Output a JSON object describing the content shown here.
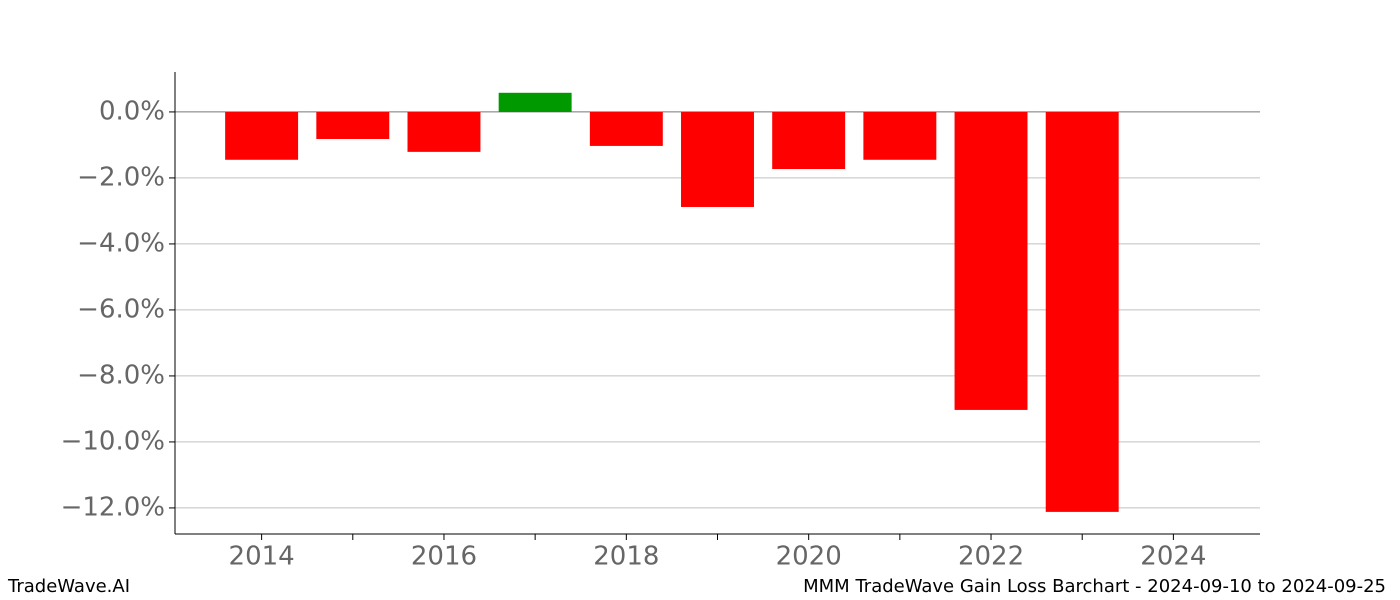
{
  "chart_data": {
    "type": "bar",
    "title": "MMM TradeWave Gain Loss Barchart - 2024-09-10 to 2024-09-25",
    "brand": "TradeWave.AI",
    "x": [
      2014,
      2015,
      2016,
      2017,
      2018,
      2019,
      2020,
      2021,
      2022,
      2023
    ],
    "values": [
      -1.45,
      -0.82,
      -1.21,
      0.58,
      -1.03,
      -2.88,
      -1.73,
      -1.45,
      -9.03,
      -12.12
    ],
    "colors": [
      "#ff0000",
      "#ff0000",
      "#ff0000",
      "#009900",
      "#ff0000",
      "#ff0000",
      "#ff0000",
      "#ff0000",
      "#ff0000",
      "#ff0000"
    ],
    "xlim": [
      2013.05,
      2024.95
    ],
    "xticks": [
      2014,
      2016,
      2018,
      2020,
      2022,
      2024
    ],
    "xminorticks": [
      2015,
      2017,
      2019,
      2021,
      2023
    ],
    "ylim": [
      -12.79,
      1.21
    ],
    "yticks": [
      {
        "value": 0,
        "label": "0.0%"
      },
      {
        "value": -2,
        "label": "−2.0%"
      },
      {
        "value": -4,
        "label": "−4.0%"
      },
      {
        "value": -6,
        "label": "−6.0%"
      },
      {
        "value": -8,
        "label": "−8.0%"
      },
      {
        "value": -10,
        "label": "−10.0%"
      },
      {
        "value": -12,
        "label": "−12.0%"
      }
    ],
    "grid": true
  }
}
